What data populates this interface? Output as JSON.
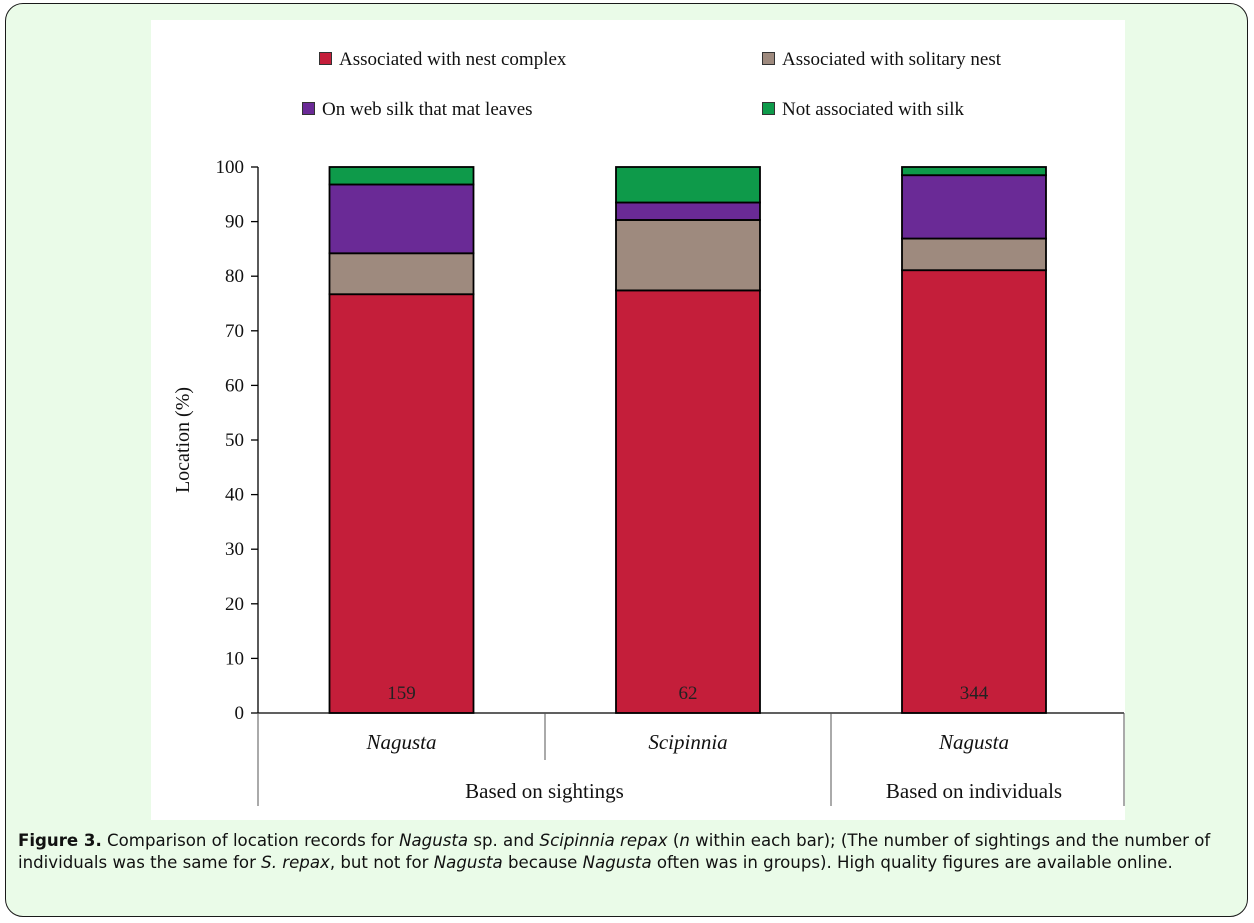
{
  "colors": {
    "nest_complex": "#c41e3a",
    "solitary_nest": "#9e8a7e",
    "web_silk": "#6a2a96",
    "not_silk": "#0e9a4a"
  },
  "chart_data": {
    "type": "bar",
    "stacked": true,
    "categories": [
      "Nagusta",
      "Scipinnia",
      "Nagusta"
    ],
    "group_labels": [
      {
        "label": "Based on sightings",
        "categories": [
          0,
          1
        ]
      },
      {
        "label": "Based on individuals",
        "categories": [
          2
        ]
      }
    ],
    "series": [
      {
        "name": "Associated with nest complex",
        "color_key": "nest_complex",
        "values": [
          76.7,
          77.4,
          81.1
        ]
      },
      {
        "name": "Associated with solitary nest",
        "color_key": "solitary_nest",
        "values": [
          7.5,
          12.9,
          5.8
        ]
      },
      {
        "name": "On web silk that mat leaves",
        "color_key": "web_silk",
        "values": [
          12.6,
          3.2,
          11.6
        ]
      },
      {
        "name": "Not associated with silk",
        "color_key": "not_silk",
        "values": [
          3.2,
          6.5,
          1.5
        ]
      }
    ],
    "bar_labels": [
      "159",
      "62",
      "344"
    ],
    "ylabel": "Location (%)",
    "xlabel": "",
    "ylim": [
      0,
      100
    ],
    "yticks": [
      0,
      10,
      20,
      30,
      40,
      50,
      60,
      70,
      80,
      90,
      100
    ],
    "grid": false,
    "legend_position": "top"
  },
  "caption": {
    "figure_label": "Figure 3.",
    "segments": [
      {
        "text": " Comparison of location records for ",
        "italic": false
      },
      {
        "text": "Nagusta",
        "italic": true
      },
      {
        "text": " sp. and ",
        "italic": false
      },
      {
        "text": "Scipinnia repax",
        "italic": true
      },
      {
        "text": " (",
        "italic": false
      },
      {
        "text": "n",
        "italic": true
      },
      {
        "text": " within each bar); (The number of sightings and the number of individuals was the same for ",
        "italic": false
      },
      {
        "text": "S. repax",
        "italic": true
      },
      {
        "text": ", but not for ",
        "italic": false
      },
      {
        "text": "Nagusta",
        "italic": true
      },
      {
        "text": " because ",
        "italic": false
      },
      {
        "text": "Nagusta",
        "italic": true
      },
      {
        "text": " often was in groups). High quality figures are available online.",
        "italic": false
      }
    ]
  }
}
